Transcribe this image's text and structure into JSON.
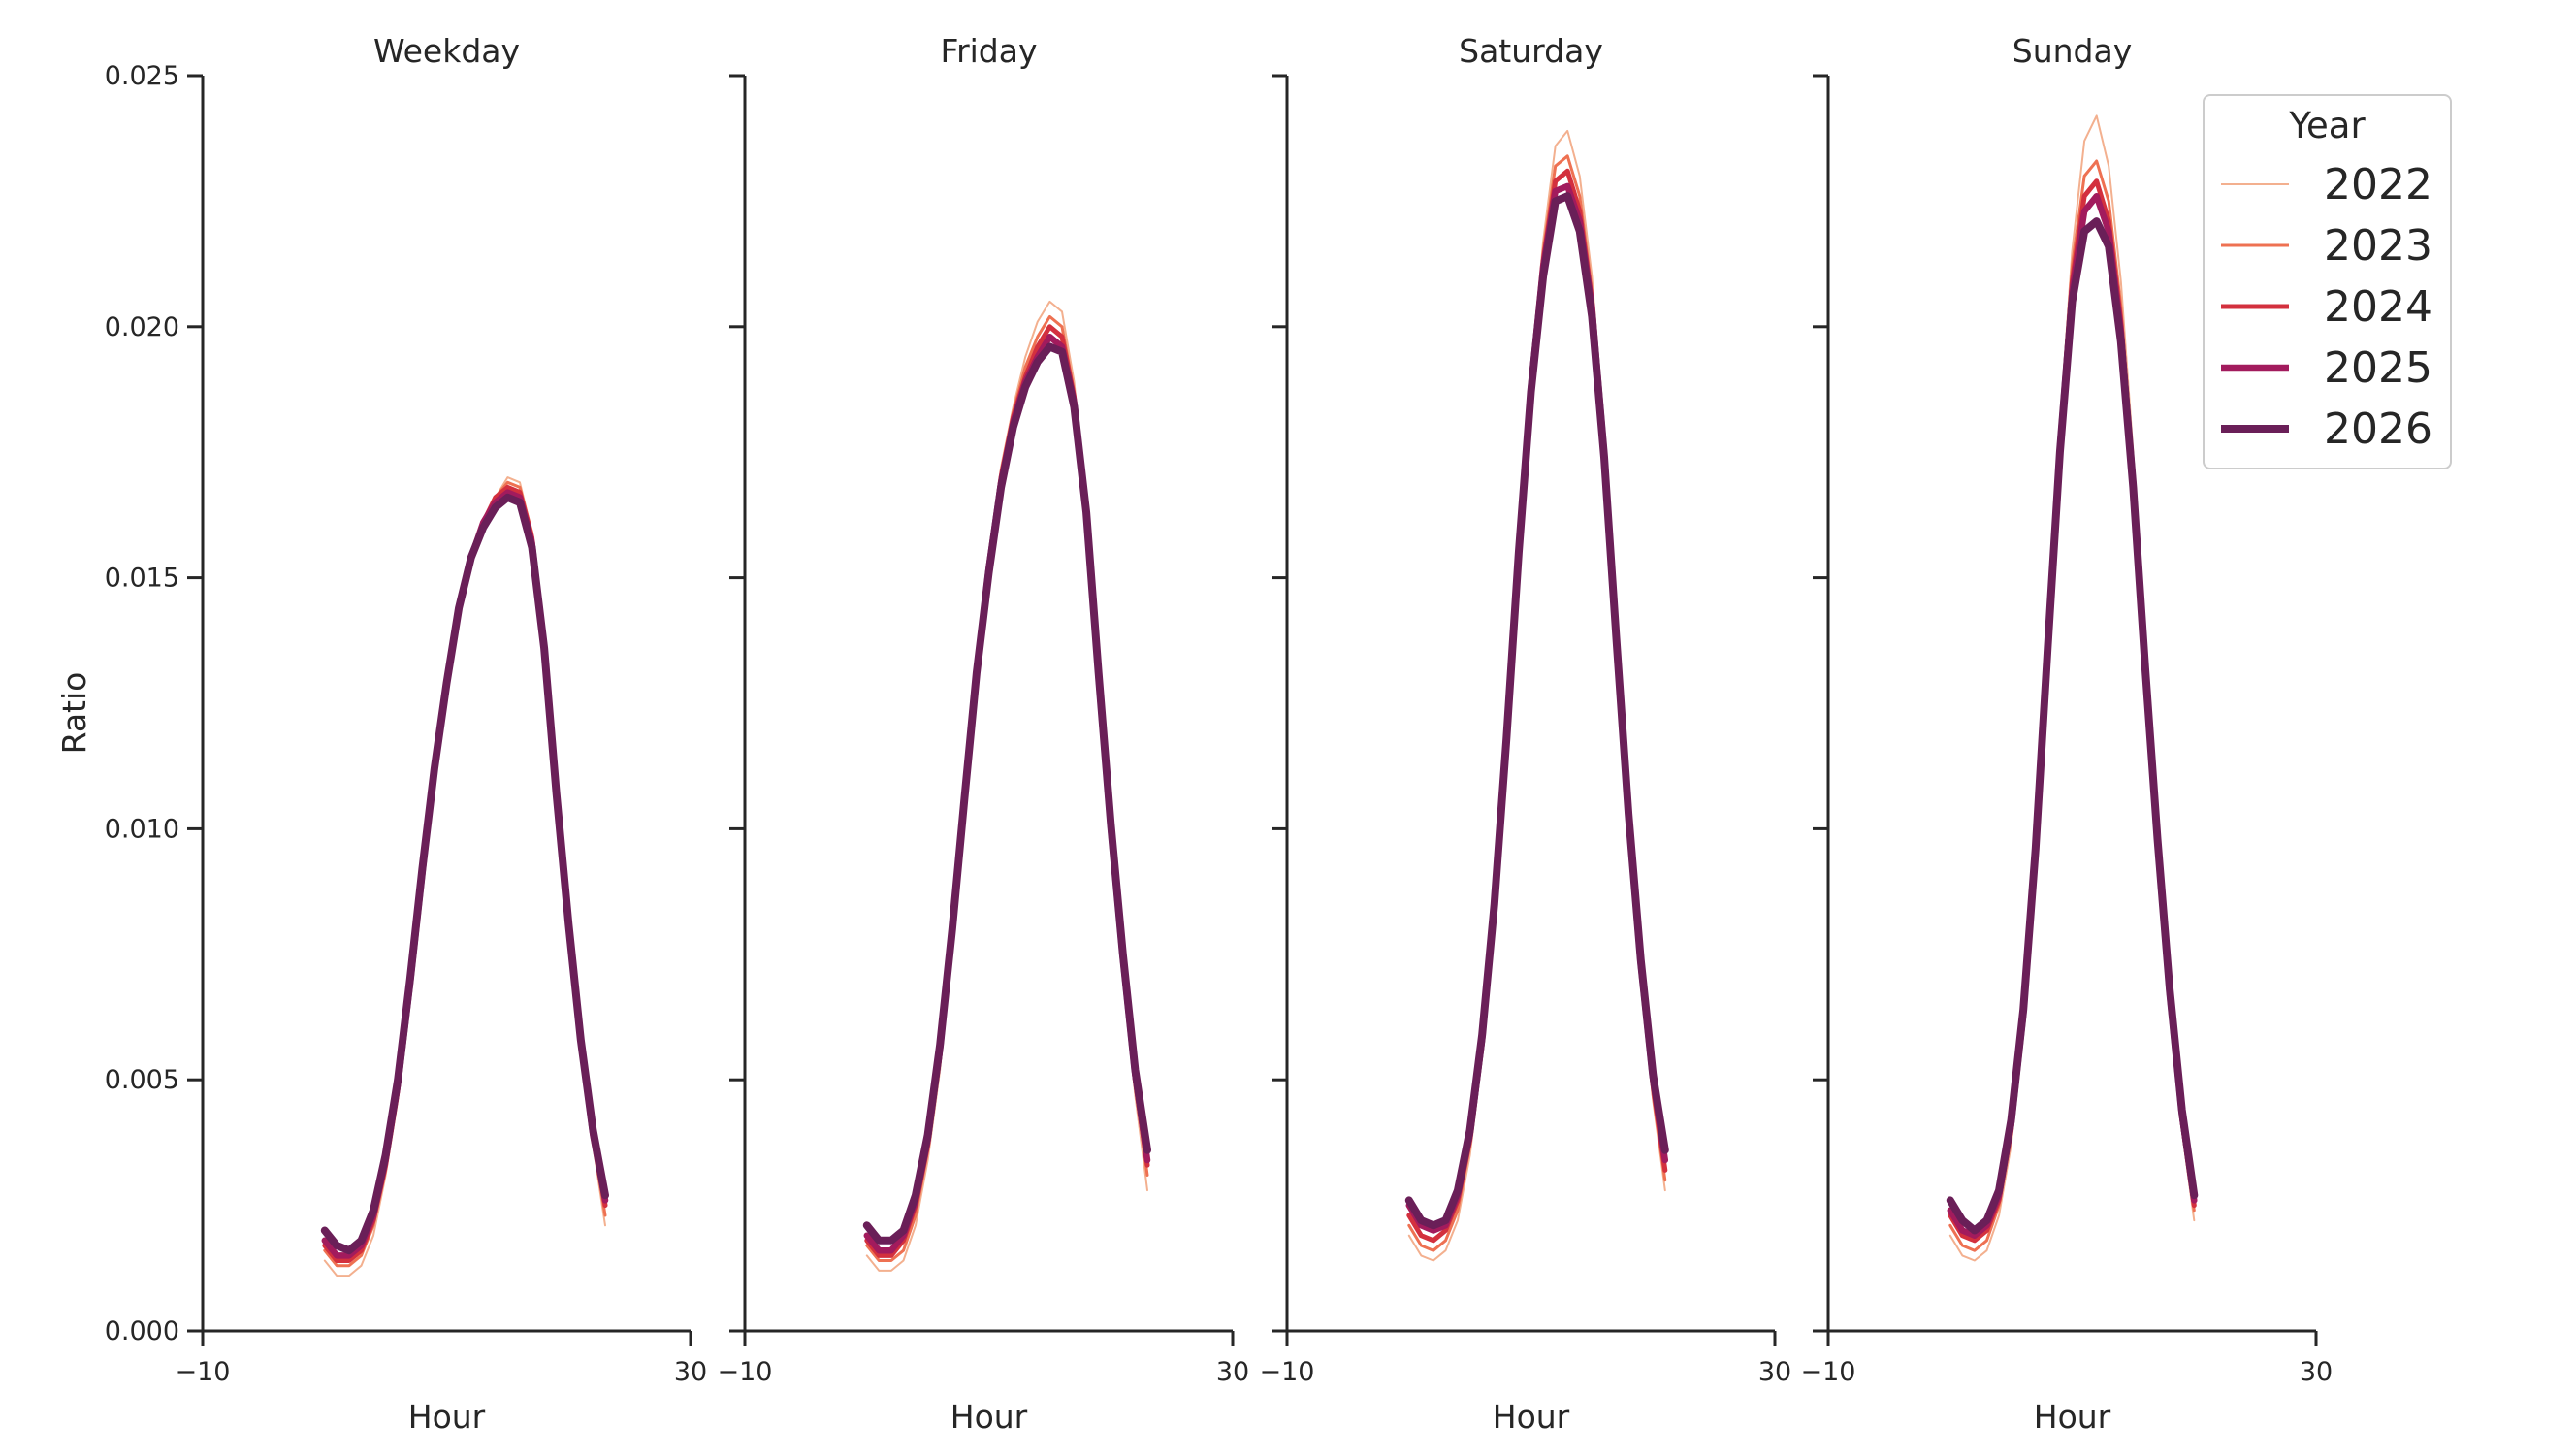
{
  "chart_data": {
    "type": "line",
    "layout": "small-multiples",
    "ylabel": "Ratio",
    "xlabel": "Hour",
    "xlim": [
      -10,
      30
    ],
    "ylim": [
      0,
      0.025
    ],
    "xticks": [
      "−10",
      "30"
    ],
    "yticks": [
      "0.000",
      "0.005",
      "0.010",
      "0.015",
      "0.020",
      "0.025"
    ],
    "grid": false,
    "legend": {
      "title": "Year",
      "placement": "top-right",
      "entries": [
        "2022",
        "2023",
        "2024",
        "2025",
        "2026"
      ]
    },
    "series_style": [
      {
        "color": "#f3b08f",
        "width": 2
      },
      {
        "color": "#ee7152",
        "width": 3
      },
      {
        "color": "#d3303e",
        "width": 5
      },
      {
        "color": "#a21b5d",
        "width": 6.5
      },
      {
        "color": "#6a1f58",
        "width": 8
      }
    ],
    "panels": [
      {
        "title": "Weekday",
        "hours_start": 0,
        "hours_step": 1,
        "series": [
          {
            "values": [
              0.0014,
              0.0011,
              0.0011,
              0.0013,
              0.0019,
              0.0031,
              0.0046,
              0.0067,
              0.009,
              0.0112,
              0.0129,
              0.0144,
              0.0154,
              0.0161,
              0.0166,
              0.017,
              0.0169,
              0.0159,
              0.0137,
              0.0107,
              0.008,
              0.0056,
              0.0037,
              0.0021
            ]
          },
          {
            "values": [
              0.0016,
              0.0013,
              0.0013,
              0.0015,
              0.0021,
              0.0032,
              0.0047,
              0.0068,
              0.0091,
              0.0112,
              0.0129,
              0.0144,
              0.0154,
              0.0161,
              0.0166,
              0.0169,
              0.0168,
              0.0159,
              0.0137,
              0.0107,
              0.008,
              0.0057,
              0.0038,
              0.0023
            ]
          },
          {
            "values": [
              0.0017,
              0.0014,
              0.0014,
              0.0016,
              0.0022,
              0.0033,
              0.0048,
              0.0068,
              0.0091,
              0.0112,
              0.0129,
              0.0144,
              0.0154,
              0.0161,
              0.0166,
              0.0168,
              0.0167,
              0.0158,
              0.0137,
              0.0107,
              0.0081,
              0.0057,
              0.0039,
              0.0025
            ]
          },
          {
            "values": [
              0.0018,
              0.0015,
              0.0015,
              0.0017,
              0.0023,
              0.0034,
              0.0049,
              0.0069,
              0.0091,
              0.0112,
              0.0129,
              0.0144,
              0.0154,
              0.0161,
              0.0165,
              0.0167,
              0.0166,
              0.0157,
              0.0136,
              0.0107,
              0.0081,
              0.0058,
              0.0039,
              0.0026
            ]
          },
          {
            "values": [
              0.002,
              0.0017,
              0.0016,
              0.0018,
              0.0024,
              0.0035,
              0.005,
              0.007,
              0.0092,
              0.0112,
              0.0129,
              0.0144,
              0.0154,
              0.016,
              0.0164,
              0.0166,
              0.0165,
              0.0156,
              0.0136,
              0.0107,
              0.0081,
              0.0058,
              0.004,
              0.0027
            ]
          }
        ]
      },
      {
        "title": "Friday",
        "hours_start": 0,
        "hours_step": 1,
        "series": [
          {
            "values": [
              0.0015,
              0.0012,
              0.0012,
              0.0014,
              0.0021,
              0.0034,
              0.0052,
              0.0078,
              0.0106,
              0.0132,
              0.0154,
              0.0172,
              0.0184,
              0.0194,
              0.0201,
              0.0205,
              0.0203,
              0.0189,
              0.0164,
              0.0129,
              0.0098,
              0.0071,
              0.0047,
              0.0028
            ]
          },
          {
            "values": [
              0.0017,
              0.0014,
              0.0014,
              0.0016,
              0.0023,
              0.0036,
              0.0054,
              0.0079,
              0.0106,
              0.0132,
              0.0153,
              0.0171,
              0.0183,
              0.0192,
              0.0198,
              0.0202,
              0.02,
              0.0187,
              0.0163,
              0.0129,
              0.0099,
              0.0072,
              0.0049,
              0.0031
            ]
          },
          {
            "values": [
              0.0018,
              0.0015,
              0.0015,
              0.0018,
              0.0025,
              0.0037,
              0.0055,
              0.0079,
              0.0106,
              0.0131,
              0.0152,
              0.017,
              0.0182,
              0.019,
              0.0196,
              0.02,
              0.0198,
              0.0186,
              0.0163,
              0.013,
              0.0099,
              0.0073,
              0.005,
              0.0033
            ]
          },
          {
            "values": [
              0.0019,
              0.0016,
              0.0016,
              0.0019,
              0.0026,
              0.0038,
              0.0056,
              0.008,
              0.0106,
              0.0131,
              0.0152,
              0.0169,
              0.0181,
              0.0189,
              0.0194,
              0.0198,
              0.0196,
              0.0185,
              0.0163,
              0.013,
              0.01,
              0.0074,
              0.0051,
              0.0034
            ]
          },
          {
            "values": [
              0.0021,
              0.0018,
              0.0018,
              0.002,
              0.0027,
              0.0039,
              0.0057,
              0.008,
              0.0106,
              0.0131,
              0.0151,
              0.0168,
              0.018,
              0.0188,
              0.0193,
              0.0196,
              0.0195,
              0.0184,
              0.0163,
              0.0131,
              0.0101,
              0.0075,
              0.0052,
              0.0036
            ]
          }
        ]
      },
      {
        "title": "Saturday",
        "hours_start": 0,
        "hours_step": 1,
        "series": [
          {
            "values": [
              0.0019,
              0.0015,
              0.0014,
              0.0016,
              0.0022,
              0.0035,
              0.0055,
              0.0082,
              0.0117,
              0.0155,
              0.019,
              0.0217,
              0.0236,
              0.0239,
              0.023,
              0.021,
              0.0178,
              0.0138,
              0.0101,
              0.007,
              0.0046,
              0.0028
            ]
          },
          {
            "values": [
              0.0021,
              0.0017,
              0.0016,
              0.0018,
              0.0024,
              0.0037,
              0.0056,
              0.0083,
              0.0118,
              0.0155,
              0.0189,
              0.0215,
              0.0232,
              0.0234,
              0.0226,
              0.0207,
              0.0177,
              0.0138,
              0.0101,
              0.0071,
              0.0047,
              0.003
            ]
          },
          {
            "values": [
              0.0023,
              0.0019,
              0.0018,
              0.002,
              0.0026,
              0.0038,
              0.0057,
              0.0084,
              0.0118,
              0.0155,
              0.0189,
              0.0213,
              0.0229,
              0.0231,
              0.0223,
              0.0205,
              0.0176,
              0.0138,
              0.0102,
              0.0072,
              0.0049,
              0.0032
            ]
          },
          {
            "values": [
              0.0025,
              0.0021,
              0.002,
              0.0021,
              0.0027,
              0.0039,
              0.0058,
              0.0085,
              0.0118,
              0.0155,
              0.0188,
              0.0212,
              0.0227,
              0.0228,
              0.0221,
              0.0204,
              0.0175,
              0.0138,
              0.0102,
              0.0073,
              0.005,
              0.0034
            ]
          },
          {
            "values": [
              0.0026,
              0.0022,
              0.0021,
              0.0022,
              0.0028,
              0.004,
              0.0059,
              0.0085,
              0.0118,
              0.0155,
              0.0187,
              0.021,
              0.0225,
              0.0226,
              0.0219,
              0.0202,
              0.0174,
              0.0138,
              0.0103,
              0.0074,
              0.0051,
              0.0036
            ]
          }
        ]
      },
      {
        "title": "Sunday",
        "hours_start": 0,
        "hours_step": 1,
        "series": [
          {
            "values": [
              0.0019,
              0.0015,
              0.0014,
              0.0016,
              0.0023,
              0.0037,
              0.006,
              0.0093,
              0.0135,
              0.018,
              0.0215,
              0.0237,
              0.0242,
              0.0232,
              0.0209,
              0.0175,
              0.0135,
              0.0096,
              0.0064,
              0.004,
              0.0022
            ]
          },
          {
            "values": [
              0.0021,
              0.0017,
              0.0016,
              0.0018,
              0.0025,
              0.0039,
              0.0061,
              0.0094,
              0.0135,
              0.0178,
              0.0212,
              0.023,
              0.0233,
              0.0225,
              0.0204,
              0.0172,
              0.0134,
              0.0096,
              0.0065,
              0.0041,
              0.0024
            ]
          },
          {
            "values": [
              0.0023,
              0.0019,
              0.0018,
              0.002,
              0.0026,
              0.004,
              0.0062,
              0.0095,
              0.0136,
              0.0177,
              0.0209,
              0.0226,
              0.0229,
              0.0221,
              0.0201,
              0.017,
              0.0133,
              0.0097,
              0.0066,
              0.0042,
              0.0025
            ]
          },
          {
            "values": [
              0.0024,
              0.002,
              0.0019,
              0.0021,
              0.0027,
              0.0041,
              0.0063,
              0.0095,
              0.0136,
              0.0176,
              0.0207,
              0.0223,
              0.0226,
              0.0219,
              0.0199,
              0.0169,
              0.0133,
              0.0097,
              0.0067,
              0.0043,
              0.0026
            ]
          },
          {
            "values": [
              0.0026,
              0.0022,
              0.002,
              0.0022,
              0.0028,
              0.0042,
              0.0064,
              0.0096,
              0.0136,
              0.0175,
              0.0205,
              0.0219,
              0.0221,
              0.0216,
              0.0197,
              0.0168,
              0.0132,
              0.0098,
              0.0068,
              0.0044,
              0.0027
            ]
          }
        ]
      }
    ]
  }
}
